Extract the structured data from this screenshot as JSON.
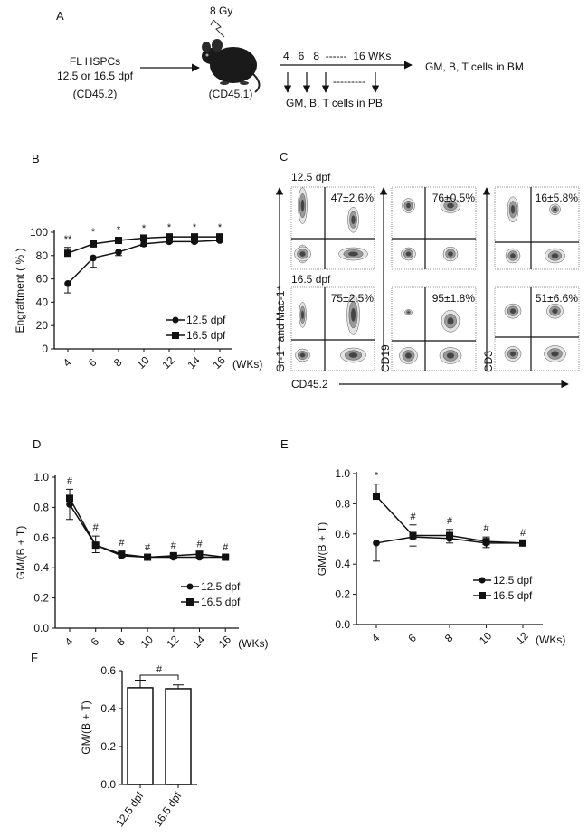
{
  "panel_letters": {
    "a": "A",
    "b": "B",
    "c": "C",
    "d": "D",
    "e": "E",
    "f": "F"
  },
  "schematic": {
    "donor_line1": "FL HSPCs",
    "donor_line2": "12.5 or 16.5 dpf",
    "donor_marker": "(CD45.2)",
    "irradiation": "8 Gy",
    "recipient_marker": "(CD45.1)",
    "timeline_label": "4   6   8  ------  16 WKs",
    "timeline_dashes": "---------",
    "pb_readout": "GM, B, T cells in PB",
    "bm_readout": "GM, B, T cells in BM",
    "icons": [
      "mouse-icon",
      "lightning-icon",
      "arrow-right-icon",
      "arrow-down-icon"
    ]
  },
  "flow": {
    "row_labels": [
      "12.5 dpf",
      "16.5 dpf"
    ],
    "y_labels": [
      "Gr-1⁺ and Mac-1⁺",
      "CD19",
      "CD3"
    ],
    "x_label": "CD45.2",
    "percentages": [
      [
        "47±2.6%",
        "76±0.5%",
        "16±5.8%"
      ],
      [
        "75±2.5%",
        "95±1.8%",
        "51±6.6%"
      ]
    ]
  },
  "chart_data": [
    {
      "panel": "B",
      "type": "line",
      "ylabel": "Engraftment ( % )",
      "xunit": "(WKs)",
      "x": [
        4,
        6,
        8,
        10,
        12,
        14,
        16
      ],
      "xticks": [
        "4",
        "6",
        "8",
        "10",
        "12",
        "14",
        "16"
      ],
      "yticks": [
        "0",
        "20",
        "40",
        "60",
        "80",
        "100"
      ],
      "ylim": [
        0,
        100
      ],
      "legend": "bottom-right",
      "significance": [
        "**",
        "*",
        "*",
        "*",
        "*",
        "*",
        "*"
      ],
      "series": [
        {
          "name": "12.5 dpf",
          "marker": "circle",
          "values": [
            56,
            78,
            83,
            90,
            92,
            92,
            93
          ],
          "err": [
            8,
            8,
            3,
            2,
            1,
            1,
            1
          ]
        },
        {
          "name": "16.5 dpf",
          "marker": "square",
          "values": [
            82,
            90,
            93,
            95,
            96,
            96,
            96
          ],
          "err": [
            5,
            3,
            2,
            1,
            1,
            1,
            1
          ]
        }
      ]
    },
    {
      "panel": "D",
      "type": "line",
      "ylabel": "GM/(B + T)",
      "xunit": "(WKs)",
      "x": [
        4,
        6,
        8,
        10,
        12,
        14,
        16
      ],
      "xticks": [
        "4",
        "6",
        "8",
        "10",
        "12",
        "14",
        "16"
      ],
      "yticks": [
        "0.0",
        "0.2",
        "0.4",
        "0.6",
        "0.8",
        "1.0"
      ],
      "ylim": [
        0,
        1
      ],
      "legend": "bottom-right",
      "significance": [
        "#",
        "#",
        "#",
        "#",
        "#",
        "#",
        "#"
      ],
      "series": [
        {
          "name": "12.5 dpf",
          "marker": "circle",
          "values": [
            0.82,
            0.55,
            0.48,
            0.47,
            0.47,
            0.47,
            0.47
          ],
          "err": [
            0.1,
            0.05,
            0.01,
            0.01,
            0.01,
            0.01,
            0.01
          ]
        },
        {
          "name": "16.5 dpf",
          "marker": "square",
          "values": [
            0.86,
            0.55,
            0.49,
            0.47,
            0.48,
            0.49,
            0.47
          ],
          "err": [
            0.06,
            0.06,
            0.02,
            0.01,
            0.01,
            0.01,
            0.01
          ]
        }
      ]
    },
    {
      "panel": "E",
      "type": "line",
      "ylabel": "GM/(B + T)",
      "xunit": "(WKs)",
      "x": [
        4,
        6,
        8,
        10,
        12
      ],
      "xticks": [
        "4",
        "6",
        "8",
        "10",
        "12"
      ],
      "yticks": [
        "0.0",
        "0.2",
        "0.4",
        "0.6",
        "0.8",
        "1.0"
      ],
      "ylim": [
        0,
        1
      ],
      "legend": "bottom-right",
      "significance": [
        "*",
        "#",
        "#",
        "#",
        "#"
      ],
      "series": [
        {
          "name": "12.5 dpf",
          "marker": "circle",
          "values": [
            0.54,
            0.58,
            0.57,
            0.54,
            0.54
          ],
          "err": [
            0.12,
            0.06,
            0.03,
            0.03,
            0.01
          ]
        },
        {
          "name": "16.5 dpf",
          "marker": "square",
          "values": [
            0.85,
            0.59,
            0.59,
            0.55,
            0.54
          ],
          "err": [
            0.08,
            0.07,
            0.04,
            0.03,
            0.01
          ]
        }
      ]
    },
    {
      "panel": "F",
      "type": "bar",
      "ylabel": "GM/(B + T)",
      "categories": [
        "12.5 dpf",
        "16.5 dpf"
      ],
      "values": [
        0.51,
        0.505
      ],
      "err": [
        0.04,
        0.02
      ],
      "yticks": [
        "0.0",
        "0.2",
        "0.4",
        "0.6"
      ],
      "ylim": [
        0,
        0.6
      ],
      "significance": "#"
    }
  ]
}
